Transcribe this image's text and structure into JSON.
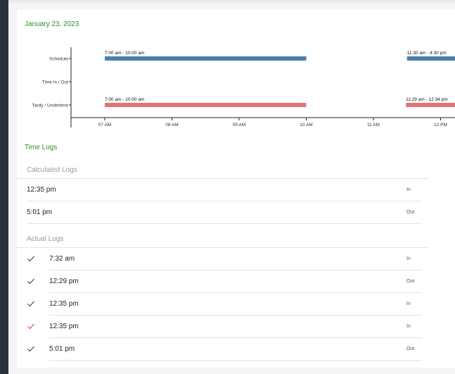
{
  "date_title": "January 23, 2023",
  "timeline": {
    "row_labels": [
      "Schedule",
      "Time In / Out",
      "Tardy / Undertime"
    ],
    "tick_labels": [
      "07 AM",
      "08 AM",
      "09 AM",
      "10 AM",
      "11 AM",
      "12 PM"
    ],
    "schedule_bars": [
      {
        "label": "7:00 am - 10:00 am",
        "start_hour": 7.0,
        "end_hour": 10.0
      },
      {
        "label": "11:30 am - 4:30 pm",
        "start_hour": 11.5,
        "end_hour": 16.5
      }
    ],
    "tardy_bars": [
      {
        "label": "7:00 am - 10:00 am",
        "start_hour": 7.0,
        "end_hour": 10.0
      },
      {
        "label": "11:29 am - 12:34 pm",
        "start_hour": 11.483,
        "end_hour": 12.567
      }
    ],
    "colors": {
      "schedule": "#4a7fa8",
      "tardy": "#e57373"
    }
  },
  "time_logs": {
    "title": "Time Logs",
    "calculated_header": "Calculated Logs",
    "calculated": [
      {
        "time": "12:35 pm",
        "type": "In"
      },
      {
        "time": "5:01 pm",
        "type": "Out"
      }
    ],
    "actual_header": "Actual Logs",
    "actual": [
      {
        "time": "7:32 am",
        "type": "In",
        "check_color": "#333333"
      },
      {
        "time": "12:29 pm",
        "type": "Out",
        "check_color": "#333333"
      },
      {
        "time": "12:35 pm",
        "type": "In",
        "check_color": "#333333"
      },
      {
        "time": "12:35 pm",
        "type": "In",
        "check_color": "#e53935"
      },
      {
        "time": "5:01 pm",
        "type": "Out",
        "check_color": "#333333"
      }
    ]
  }
}
